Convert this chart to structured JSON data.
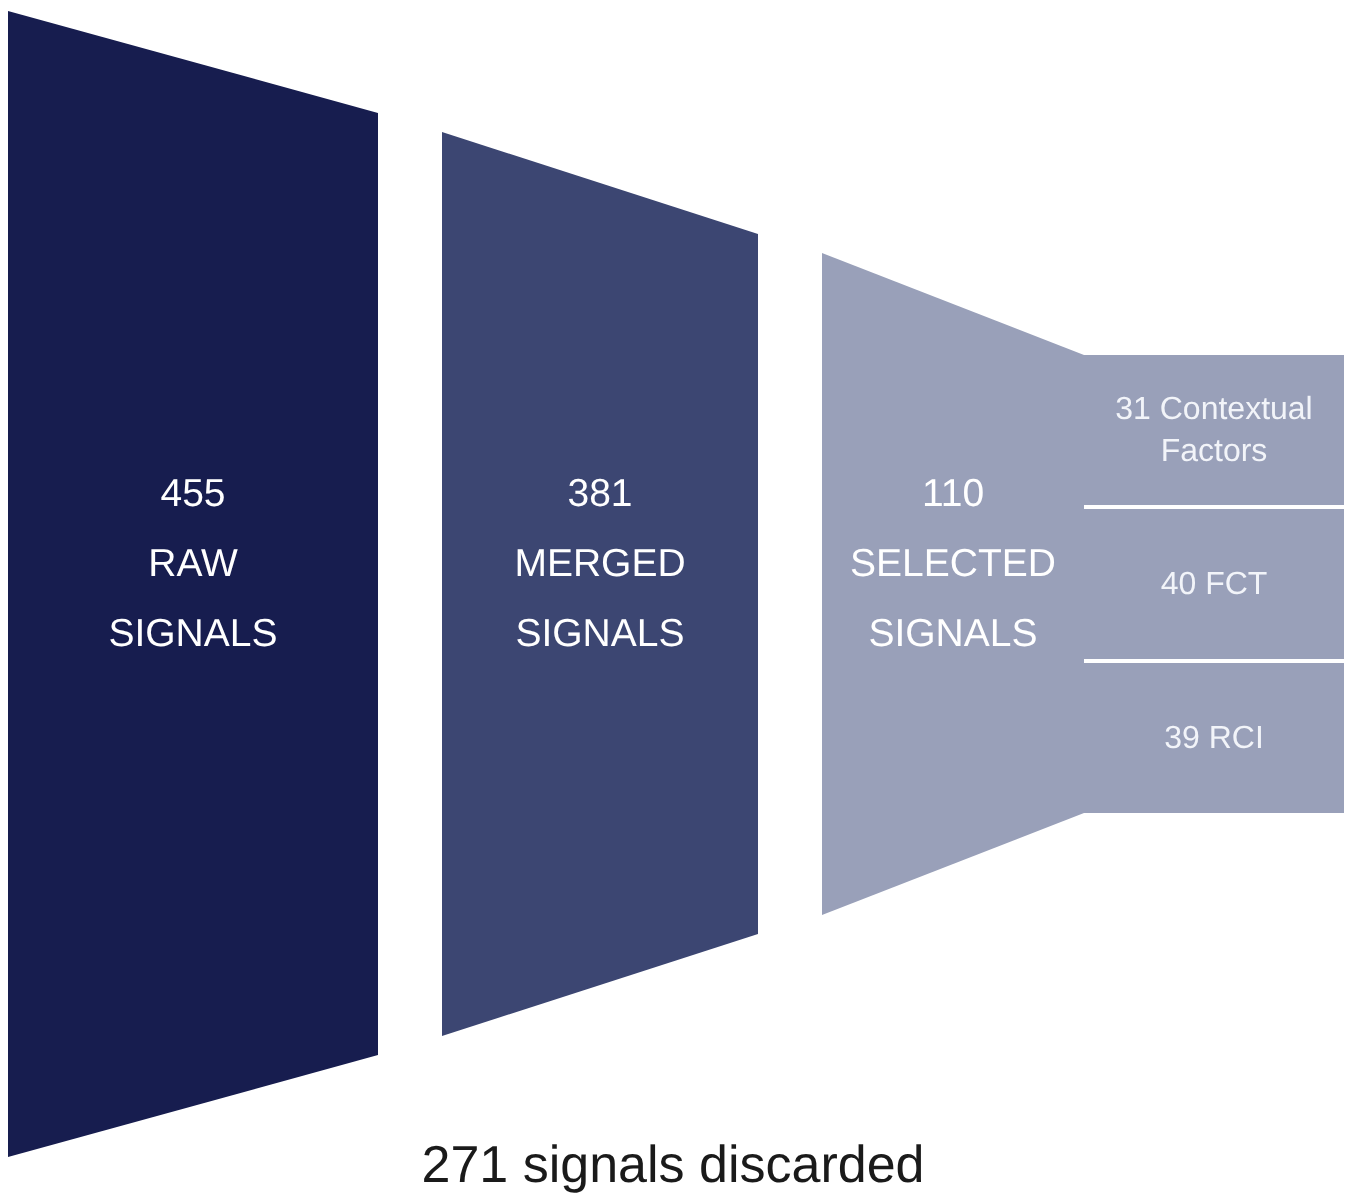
{
  "chart_data": {
    "type": "other",
    "categories": [
      "RAW SIGNALS",
      "MERGED SIGNALS",
      "SELECTED SIGNALS",
      "Contextual Factors",
      "FCT",
      "RCI"
    ],
    "series": [
      {
        "values": [
          455,
          381,
          110,
          null,
          null,
          null
        ],
        "colors": [
          "#171d4f",
          "#3c4672",
          "#99a0b9",
          null,
          null,
          null
        ]
      },
      {
        "values": [
          null,
          null,
          null,
          31,
          40,
          39
        ],
        "color": "#99a0b9"
      }
    ],
    "data_labels": true,
    "annotations": [
      "271 signals discarded"
    ]
  }
}
